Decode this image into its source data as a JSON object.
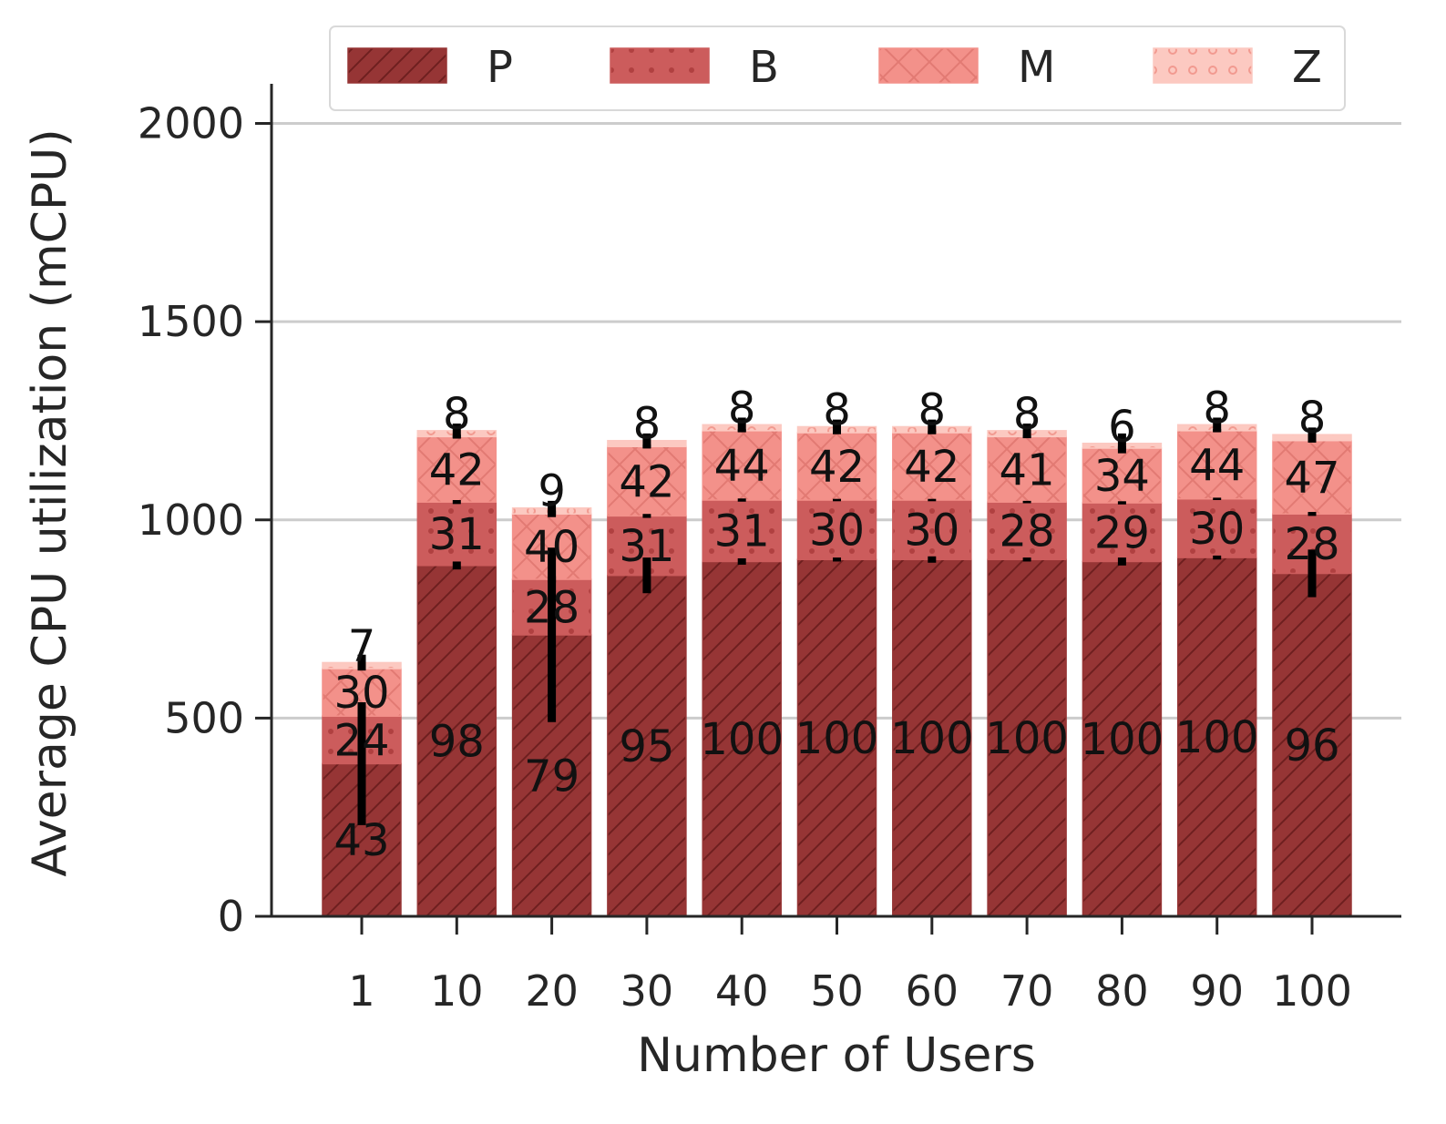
{
  "chart_data": {
    "type": "bar",
    "stacked": true,
    "title": "",
    "xlabel": "Number of Users",
    "ylabel": "Average CPU utilization (mCPU)",
    "ylim": [
      0,
      2100
    ],
    "yticks": [
      0,
      500,
      1000,
      1500,
      2000
    ],
    "grid": "horizontal",
    "legend_position": "top",
    "categories": [
      "1",
      "10",
      "20",
      "30",
      "40",
      "50",
      "60",
      "70",
      "80",
      "90",
      "100"
    ],
    "series": [
      {
        "name": "P",
        "color": "#963535",
        "pattern": "diagonal-hatch",
        "values": [
          385,
          885,
          710,
          860,
          895,
          900,
          900,
          900,
          895,
          905,
          865
        ],
        "error": [
          155,
          10,
          220,
          45,
          8,
          5,
          8,
          5,
          10,
          5,
          60
        ],
        "labels": [
          "43",
          "98",
          "79",
          "95",
          "100",
          "100",
          "100",
          "100",
          "100",
          "100",
          "96"
        ]
      },
      {
        "name": "B",
        "color": "#cc5c5c",
        "pattern": "dots",
        "values": [
          120,
          160,
          140,
          150,
          155,
          150,
          150,
          145,
          148,
          148,
          150
        ],
        "error": [
          4,
          5,
          8,
          5,
          4,
          3,
          3,
          3,
          4,
          3,
          5
        ],
        "labels": [
          "24",
          "31",
          "28",
          "31",
          "31",
          "30",
          "30",
          "28",
          "29",
          "30",
          "28"
        ]
      },
      {
        "name": "M",
        "color": "#f3918a",
        "pattern": "crosshatch",
        "values": [
          120,
          165,
          165,
          175,
          175,
          170,
          170,
          165,
          138,
          172,
          185
        ],
        "error": [
          4,
          5,
          8,
          5,
          4,
          4,
          4,
          4,
          4,
          4,
          5
        ],
        "labels": [
          "30",
          "42",
          "40",
          "42",
          "44",
          "42",
          "42",
          "41",
          "34",
          "44",
          "47"
        ]
      },
      {
        "name": "Z",
        "color": "#fcc9c1",
        "pattern": "circles",
        "values": [
          15,
          15,
          15,
          15,
          15,
          15,
          15,
          15,
          12,
          15,
          15
        ],
        "error": [
          20,
          18,
          18,
          18,
          18,
          18,
          18,
          18,
          25,
          18,
          18
        ],
        "labels": [
          "7",
          "8",
          "9",
          "8",
          "8",
          "8",
          "8",
          "8",
          "6",
          "8",
          "8"
        ]
      }
    ]
  }
}
